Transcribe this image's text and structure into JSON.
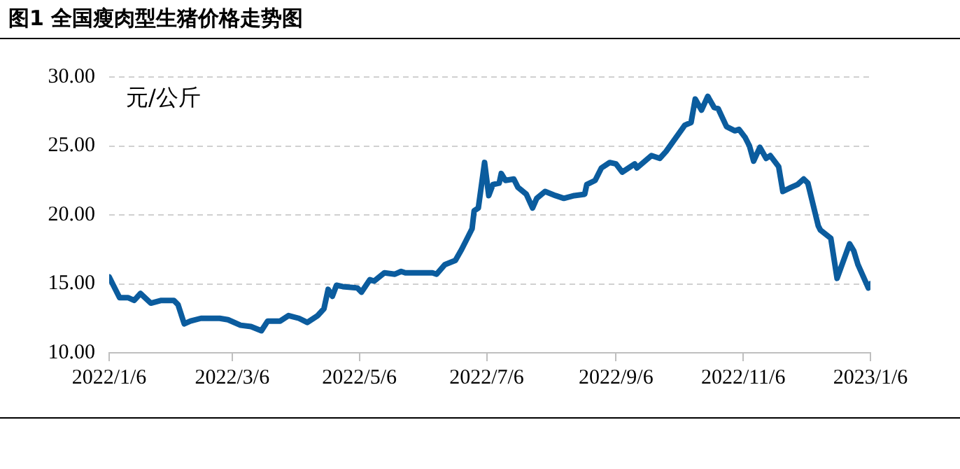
{
  "chart_data": {
    "type": "line",
    "title": "图1  全国瘦肉型生猪价格走势图",
    "annotations": [
      "元/公斤"
    ],
    "x": [
      "2022-01-06",
      "2022-01-08",
      "2022-01-11",
      "2022-01-15",
      "2022-01-18",
      "2022-01-21",
      "2022-01-26",
      "2022-01-31",
      "2022-02-06",
      "2022-02-08",
      "2022-02-11",
      "2022-02-14",
      "2022-02-19",
      "2022-02-28",
      "2022-03-04",
      "2022-03-10",
      "2022-03-15",
      "2022-03-20",
      "2022-03-23",
      "2022-03-29",
      "2022-04-02",
      "2022-04-07",
      "2022-04-11",
      "2022-04-16",
      "2022-04-19",
      "2022-04-21",
      "2022-04-23",
      "2022-04-25",
      "2022-04-28",
      "2022-05-05",
      "2022-05-07",
      "2022-05-11",
      "2022-05-13",
      "2022-05-18",
      "2022-05-23",
      "2022-05-26",
      "2022-05-28",
      "2022-06-10",
      "2022-06-12",
      "2022-06-16",
      "2022-06-21",
      "2022-06-24",
      "2022-06-26",
      "2022-06-29",
      "2022-06-30",
      "2022-07-02",
      "2022-07-05",
      "2022-07-07",
      "2022-07-09",
      "2022-07-12",
      "2022-07-13",
      "2022-07-15",
      "2022-07-19",
      "2022-07-21",
      "2022-07-25",
      "2022-07-28",
      "2022-07-30",
      "2022-08-03",
      "2022-08-08",
      "2022-08-12",
      "2022-08-17",
      "2022-08-22",
      "2022-08-23",
      "2022-08-27",
      "2022-08-30",
      "2022-09-03",
      "2022-09-06",
      "2022-09-09",
      "2022-09-15",
      "2022-09-16",
      "2022-09-23",
      "2022-09-27",
      "2022-09-30",
      "2022-10-09",
      "2022-10-12",
      "2022-10-14",
      "2022-10-17",
      "2022-10-20",
      "2022-10-23",
      "2022-10-25",
      "2022-10-29",
      "2022-11-02",
      "2022-11-04",
      "2022-11-07",
      "2022-11-09",
      "2022-11-11",
      "2022-11-14",
      "2022-11-17",
      "2022-11-19",
      "2022-11-23",
      "2022-11-25",
      "2022-11-29",
      "2022-12-02",
      "2022-12-05",
      "2022-12-07",
      "2022-12-12",
      "2022-12-13",
      "2022-12-18",
      "2022-12-21",
      "2022-12-27",
      "2022-12-29",
      "2022-12-31",
      "2023-01-05",
      "2023-01-06"
    ],
    "series": [
      {
        "color": "#0b5c9e",
        "values": [
          15.5,
          14.9,
          14.0,
          14.0,
          13.8,
          14.3,
          13.6,
          13.8,
          13.8,
          13.5,
          12.1,
          12.3,
          12.5,
          12.5,
          12.4,
          12.0,
          11.9,
          11.6,
          12.3,
          12.3,
          12.7,
          12.5,
          12.2,
          12.7,
          13.2,
          14.6,
          14.1,
          14.9,
          14.8,
          14.7,
          14.4,
          15.3,
          15.2,
          15.8,
          15.7,
          15.9,
          15.8,
          15.8,
          15.7,
          16.4,
          16.7,
          17.5,
          18.1,
          19.0,
          20.3,
          20.5,
          23.8,
          21.4,
          22.2,
          22.3,
          23.0,
          22.5,
          22.6,
          22.0,
          21.5,
          20.5,
          21.2,
          21.7,
          21.4,
          21.2,
          21.4,
          21.5,
          22.2,
          22.5,
          23.4,
          23.8,
          23.7,
          23.1,
          23.7,
          23.4,
          24.3,
          24.1,
          24.6,
          26.5,
          26.7,
          28.4,
          27.6,
          28.6,
          27.8,
          27.7,
          26.4,
          26.1,
          26.2,
          25.6,
          25.0,
          23.9,
          24.9,
          24.1,
          24.3,
          23.5,
          21.7,
          22.0,
          22.2,
          22.6,
          22.3,
          19.2,
          18.9,
          18.3,
          15.4,
          17.9,
          17.4,
          16.4,
          14.7,
          15.0
        ]
      }
    ],
    "xlim": [
      "2022-01-06",
      "2023-01-06"
    ],
    "xticks": [
      {
        "value": "2022-01-06",
        "label": "2022/1/6"
      },
      {
        "value": "2022-03-06",
        "label": "2022/3/6"
      },
      {
        "value": "2022-05-06",
        "label": "2022/5/6"
      },
      {
        "value": "2022-07-06",
        "label": "2022/7/6"
      },
      {
        "value": "2022-09-06",
        "label": "2022/9/6"
      },
      {
        "value": "2022-11-06",
        "label": "2022/11/6"
      },
      {
        "value": "2023-01-06",
        "label": "2023/1/6"
      }
    ],
    "ylim": [
      10,
      30
    ],
    "yticks": [
      {
        "value": 10,
        "label": "10.00"
      },
      {
        "value": 15,
        "label": "15.00"
      },
      {
        "value": 20,
        "label": "20.00"
      },
      {
        "value": 25,
        "label": "25.00"
      },
      {
        "value": 30,
        "label": "30.00"
      }
    ],
    "grid": "y",
    "marker": "none",
    "line_style": "solid",
    "legend": false
  }
}
